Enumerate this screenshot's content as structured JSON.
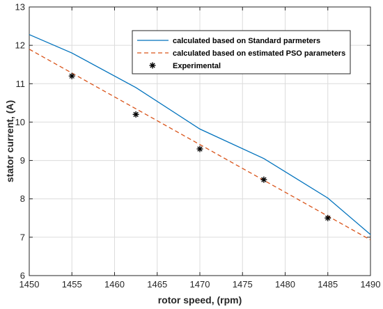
{
  "chart_data": {
    "type": "line",
    "xlabel": "rotor speed, (rpm)",
    "ylabel": "stator current, (A)",
    "xlim": [
      1450,
      1490
    ],
    "ylim": [
      6,
      13
    ],
    "xticks": [
      1450,
      1455,
      1460,
      1465,
      1470,
      1475,
      1480,
      1485,
      1490
    ],
    "yticks": [
      6,
      7,
      8,
      9,
      10,
      11,
      12,
      13
    ],
    "grid": true,
    "legend_position": "top-right",
    "series": [
      {
        "name": "calculated based on Standard parmeters",
        "style": "solid",
        "color": "#0072BD",
        "x": [
          1450,
          1455,
          1462.5,
          1470,
          1477.5,
          1485,
          1490
        ],
        "y": [
          12.28,
          11.8,
          10.9,
          9.82,
          9.05,
          8.02,
          7.07
        ]
      },
      {
        "name": "calculated based on estimated PSO parameters",
        "style": "dashed",
        "color": "#D95319",
        "x": [
          1450,
          1490
        ],
        "y": [
          11.9,
          6.93
        ]
      },
      {
        "name": "Experimental",
        "style": "markers",
        "marker": "asterisk",
        "color": "#000000",
        "x": [
          1455,
          1462.5,
          1470,
          1477.5,
          1485
        ],
        "y": [
          11.2,
          10.2,
          9.3,
          8.5,
          7.5
        ]
      }
    ]
  }
}
